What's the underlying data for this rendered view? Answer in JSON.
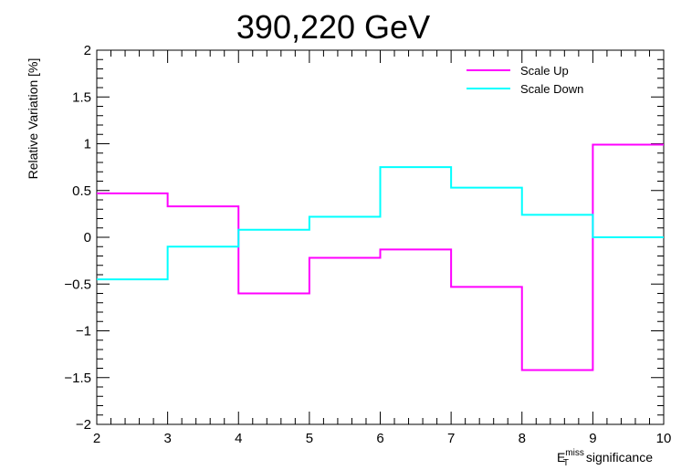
{
  "chart_data": {
    "type": "line",
    "title": "390,220 GeV",
    "ylabel": "Relative Variation [%]",
    "xlabel": {
      "main": "E",
      "superscript": "miss",
      "subscript": "T",
      "suffix": " significance"
    },
    "xlim": [
      2,
      10
    ],
    "ylim": [
      -2,
      2
    ],
    "x_edges": [
      2,
      3,
      4,
      5,
      6,
      6,
      7,
      8,
      9,
      10
    ],
    "x_ticks": [
      "2",
      "3",
      "4",
      "5",
      "6",
      "7",
      "8",
      "9",
      "10"
    ],
    "y_ticks": [
      "−2",
      "−1.5",
      "−1",
      "−0.5",
      "0",
      "0.5",
      "1",
      "1.5",
      "2"
    ],
    "series": [
      {
        "name": "Scale Up",
        "color": "#ff00ff",
        "bins": [
          [
            2,
            3,
            0.47
          ],
          [
            3,
            4,
            0.33
          ],
          [
            4,
            5,
            -0.6
          ],
          [
            5,
            6,
            -0.22
          ],
          [
            6,
            6.1,
            -0.22
          ],
          [
            6,
            7,
            -0.13
          ],
          [
            7,
            8,
            -0.53
          ],
          [
            8,
            9,
            -1.42
          ],
          [
            9,
            10,
            0.99
          ]
        ]
      },
      {
        "name": "Scale Down",
        "color": "#00ffff",
        "bins": [
          [
            2,
            3,
            -0.45
          ],
          [
            3,
            4,
            -0.1
          ],
          [
            4,
            5,
            0.08
          ],
          [
            5,
            6,
            0.22
          ],
          [
            6,
            7,
            0.75
          ],
          [
            7,
            8,
            0.53
          ],
          [
            8,
            9,
            0.24
          ],
          [
            9,
            10,
            0.0
          ]
        ]
      }
    ],
    "legend_position": "top-right",
    "grid": false
  }
}
